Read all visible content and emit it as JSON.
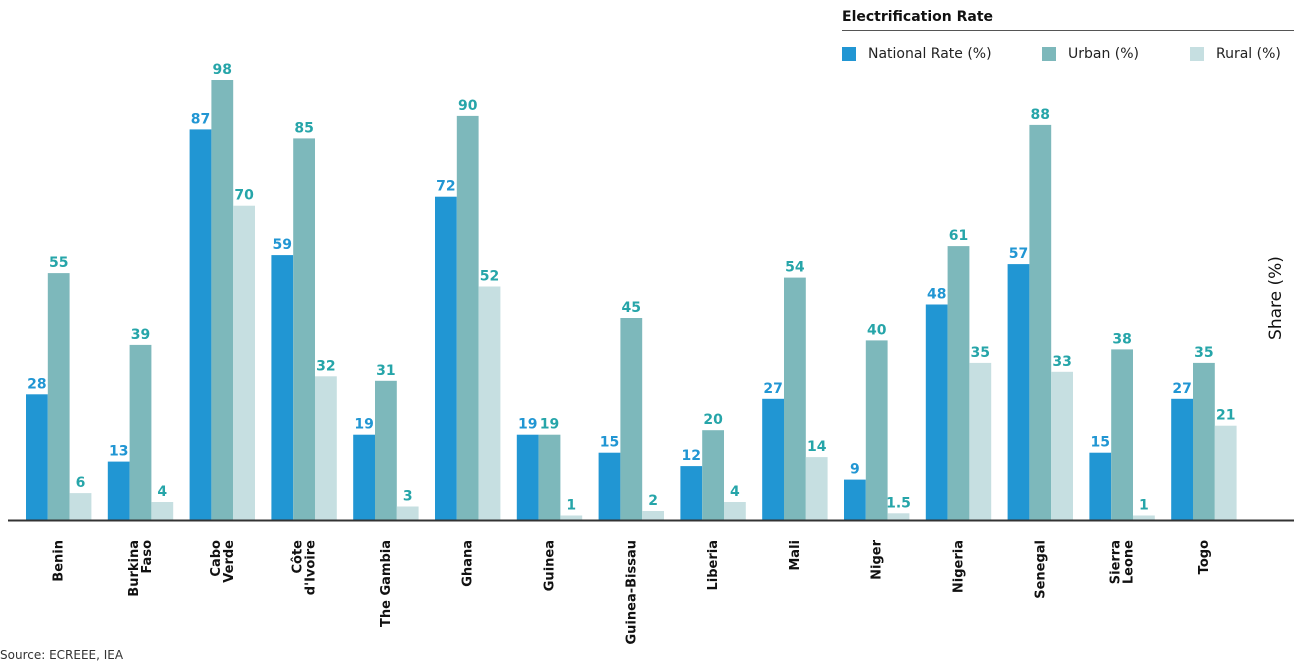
{
  "legend": {
    "title": "Electrification Rate",
    "items": [
      {
        "label": "National Rate (%)",
        "color": "#2196d3"
      },
      {
        "label": "Urban (%)",
        "color": "#7db8bb"
      },
      {
        "label": "Rural (%)",
        "color": "#c6dfe1"
      }
    ]
  },
  "source": "Source: ECREEE, IEA",
  "chart_data": {
    "type": "bar",
    "categories": [
      [
        "Benin"
      ],
      [
        "Burkina",
        "Faso"
      ],
      [
        "Cabo",
        "Verde"
      ],
      [
        "Côte",
        "d'Ivoire"
      ],
      [
        "The Gambia"
      ],
      [
        "Ghana"
      ],
      [
        "Guinea"
      ],
      [
        "Guinea-Bissau"
      ],
      [
        "Liberia"
      ],
      [
        "Mali"
      ],
      [
        "Niger"
      ],
      [
        "Nigeria"
      ],
      [
        "Senegal"
      ],
      [
        "Sierra",
        "Leone"
      ],
      [
        "Togo"
      ]
    ],
    "series": [
      {
        "name": "National Rate (%)",
        "color": "#2196d3",
        "label_color": "#2196d3",
        "values": [
          28,
          13,
          87,
          59,
          19,
          72,
          19,
          15,
          12,
          27,
          9,
          48,
          57,
          15,
          27
        ],
        "labels": [
          "28",
          "13",
          "87",
          "59",
          "19",
          "72",
          "19",
          "15",
          "12",
          "27",
          "9",
          "48",
          "57",
          "15",
          "27"
        ]
      },
      {
        "name": "Urban (%)",
        "color": "#7db8bb",
        "label_color": "#26a5a9",
        "values": [
          55,
          39,
          98,
          85,
          31,
          90,
          19,
          45,
          20,
          54,
          40,
          61,
          88,
          38,
          35
        ],
        "labels": [
          "55",
          "39",
          "98",
          "85",
          "31",
          "90",
          "19",
          "45",
          "20",
          "54",
          "40",
          "61",
          "88",
          "38",
          "35"
        ]
      },
      {
        "name": "Rural (%)",
        "color": "#c6dfe1",
        "label_color": "#26a5a9",
        "values": [
          6,
          4,
          70,
          32,
          3,
          52,
          1,
          2,
          4,
          14,
          1.5,
          35,
          33,
          1,
          21
        ],
        "labels": [
          "6",
          "4",
          "70",
          "32",
          "3",
          "52",
          "1",
          "2",
          "4",
          "14",
          "1.5",
          "35",
          "33",
          "1",
          "21"
        ]
      }
    ],
    "ylabel": "Share (%)",
    "ylim": [
      0,
      100
    ],
    "grid": false,
    "legend_position": "top-right"
  }
}
